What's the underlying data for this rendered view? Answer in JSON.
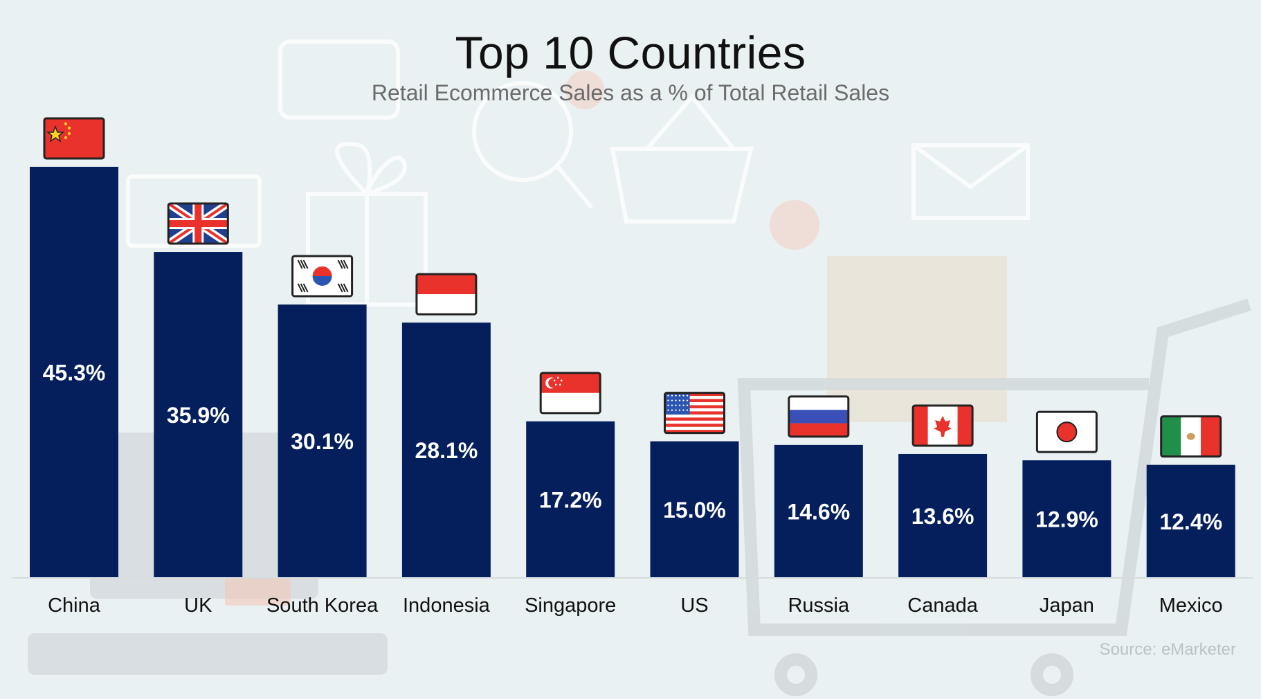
{
  "chart_data": {
    "type": "bar",
    "title": "Top 10 Countries",
    "subtitle": "Retail Ecommerce Sales as a % of Total Retail Sales",
    "categories": [
      "China",
      "UK",
      "South Korea",
      "Indonesia",
      "Singapore",
      "US",
      "Russia",
      "Canada",
      "Japan",
      "Mexico"
    ],
    "values": [
      45.3,
      35.9,
      30.1,
      28.1,
      17.2,
      15.0,
      14.6,
      13.6,
      12.9,
      12.4
    ],
    "value_labels": [
      "45.3%",
      "35.9%",
      "30.1%",
      "28.1%",
      "17.2%",
      "15.0%",
      "14.6%",
      "13.6%",
      "12.9%",
      "12.4%"
    ],
    "xlabel": "",
    "ylabel": "",
    "ylim": [
      0,
      45.3
    ],
    "grid": false,
    "legend": "none",
    "bar_color": "#041f5c",
    "label_color": "#ffffff",
    "flag_icons": [
      "china-flag-icon",
      "uk-flag-icon",
      "south-korea-flag-icon",
      "indonesia-flag-icon",
      "singapore-flag-icon",
      "us-flag-icon",
      "russia-flag-icon",
      "canada-flag-icon",
      "japan-flag-icon",
      "mexico-flag-icon"
    ]
  },
  "source": "Source: eMarketer"
}
